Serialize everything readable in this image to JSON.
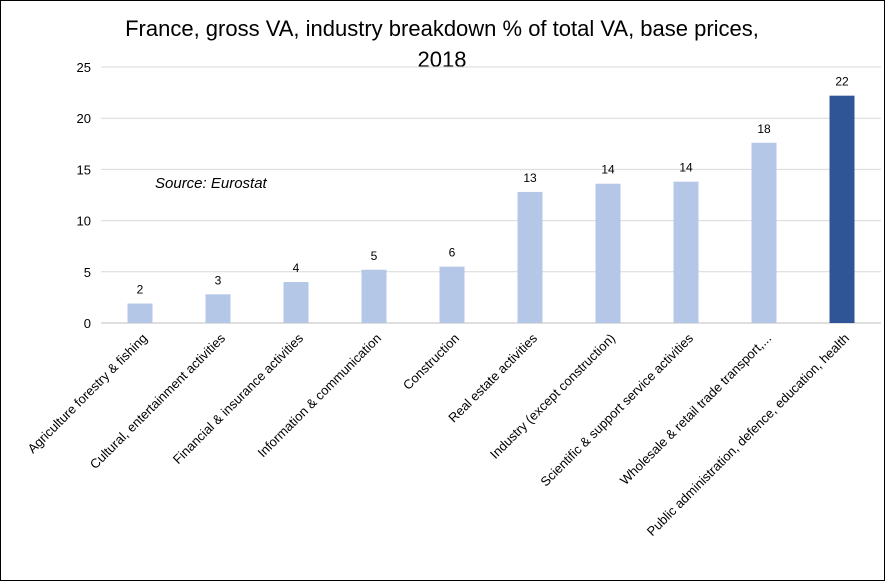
{
  "chart_data": {
    "type": "bar",
    "title_lines": [
      "France, gross VA, industry breakdown % of total VA, base prices,",
      "2018"
    ],
    "source_note": "Source: Eurostat",
    "categories": [
      "Agriculture forestry & fishing",
      "Cultural, entertainment activities",
      "Financial & insurance activities",
      "Information & communication",
      "Construction",
      "Real estate activities",
      "Industry (except construction)",
      "Scientific & support service activities",
      "Wholesale & retail trade transport,...",
      "Public administration, defence, education, health"
    ],
    "values": [
      1.9,
      2.8,
      4.0,
      5.2,
      5.5,
      12.8,
      13.6,
      13.8,
      17.6,
      22.2
    ],
    "data_labels": [
      "2",
      "3",
      "4",
      "5",
      "6",
      "13",
      "14",
      "14",
      "18",
      "22"
    ],
    "ylim": [
      0,
      25
    ],
    "yticks": [
      0,
      5,
      10,
      15,
      20,
      25
    ],
    "grid": true,
    "colors": {
      "bar": "#b4c7e7",
      "highlight_bar": "#2f5597"
    },
    "highlight_index": 9
  }
}
